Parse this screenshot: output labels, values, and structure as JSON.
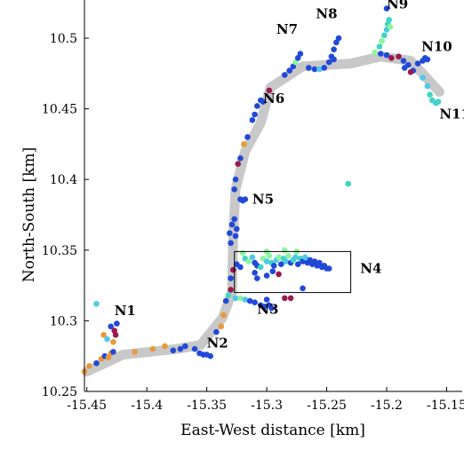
{
  "chart_data": {
    "type": "scatter",
    "xlabel": "East-West distance [km]",
    "ylabel": "North-South [km]",
    "xlim": [
      -15.452,
      -15.137
    ],
    "ylim": [
      10.25,
      10.527
    ],
    "x_ticks": [
      {
        "v": -15.45,
        "label": "-15.45"
      },
      {
        "v": -15.4,
        "label": "-15.4"
      },
      {
        "v": -15.35,
        "label": "-15.35"
      },
      {
        "v": -15.3,
        "label": "-15.3"
      },
      {
        "v": -15.25,
        "label": "-15.25"
      },
      {
        "v": -15.2,
        "label": "-15.2"
      },
      {
        "v": -15.15,
        "label": "-15.15"
      }
    ],
    "y_ticks": [
      {
        "v": 10.25,
        "label": "10.25"
      },
      {
        "v": 10.3,
        "label": "10.3"
      },
      {
        "v": 10.35,
        "label": "10.35"
      },
      {
        "v": 10.4,
        "label": "10.4"
      },
      {
        "v": 10.45,
        "label": "10.45"
      },
      {
        "v": 10.5,
        "label": "10.5"
      }
    ],
    "path": [
      [
        -15.45,
        10.264
      ],
      [
        -15.42,
        10.276
      ],
      [
        -15.375,
        10.28
      ],
      [
        -15.355,
        10.283
      ],
      [
        -15.337,
        10.302
      ],
      [
        -15.329,
        10.32
      ],
      [
        -15.328,
        10.36
      ],
      [
        -15.326,
        10.393
      ],
      [
        -15.318,
        10.42
      ],
      [
        -15.305,
        10.44
      ],
      [
        -15.297,
        10.465
      ],
      [
        -15.27,
        10.48
      ],
      [
        -15.23,
        10.482
      ],
      [
        -15.205,
        10.487
      ],
      [
        -15.18,
        10.484
      ],
      [
        -15.156,
        10.462
      ]
    ],
    "box": {
      "x0": -15.327,
      "x1": -15.23,
      "y0": 10.32,
      "y1": 10.349
    },
    "node_labels": [
      {
        "text": "N1",
        "x": -15.427,
        "y": 10.304
      },
      {
        "text": "N2",
        "x": -15.35,
        "y": 10.281
      },
      {
        "text": "N3",
        "x": -15.308,
        "y": 10.305
      },
      {
        "text": "N4",
        "x": -15.222,
        "y": 10.334
      },
      {
        "text": "N5",
        "x": -15.312,
        "y": 10.383
      },
      {
        "text": "N6",
        "x": -15.303,
        "y": 10.454
      },
      {
        "text": "N7",
        "x": -15.292,
        "y": 10.503
      },
      {
        "text": "N8",
        "x": -15.259,
        "y": 10.514
      },
      {
        "text": "N9",
        "x": -15.2,
        "y": 10.521
      },
      {
        "text": "N10",
        "x": -15.171,
        "y": 10.491
      },
      {
        "text": "N11",
        "x": -15.156,
        "y": 10.443
      }
    ],
    "points": [
      [
        -15.452,
        10.264,
        "orange"
      ],
      [
        -15.448,
        10.268,
        "orange"
      ],
      [
        -15.442,
        10.27,
        "blue"
      ],
      [
        -15.438,
        10.273,
        "orange"
      ],
      [
        -15.435,
        10.275,
        "blue"
      ],
      [
        -15.432,
        10.274,
        "orange"
      ],
      [
        -15.43,
        10.277,
        "orange"
      ],
      [
        -15.428,
        10.278,
        "blue"
      ],
      [
        -15.436,
        10.29,
        "orange"
      ],
      [
        -15.433,
        10.287,
        "cyan"
      ],
      [
        -15.43,
        10.296,
        "blue"
      ],
      [
        -15.427,
        10.293,
        "maroon"
      ],
      [
        -15.426,
        10.29,
        "maroon"
      ],
      [
        -15.425,
        10.298,
        "blue"
      ],
      [
        -15.428,
        10.285,
        "orange"
      ],
      [
        -15.442,
        10.312,
        "cyan"
      ],
      [
        -15.41,
        10.278,
        "orange"
      ],
      [
        -15.395,
        10.28,
        "orange"
      ],
      [
        -15.385,
        10.282,
        "orange"
      ],
      [
        -15.378,
        10.279,
        "blue"
      ],
      [
        -15.372,
        10.28,
        "blue"
      ],
      [
        -15.368,
        10.282,
        "blue"
      ],
      [
        -15.36,
        10.28,
        "blue"
      ],
      [
        -15.356,
        10.277,
        "blue"
      ],
      [
        -15.353,
        10.276,
        "blue"
      ],
      [
        -15.35,
        10.276,
        "blue"
      ],
      [
        -15.347,
        10.275,
        "blue"
      ],
      [
        -15.342,
        10.292,
        "blue"
      ],
      [
        -15.338,
        10.296,
        "orange"
      ],
      [
        -15.336,
        10.304,
        "orange"
      ],
      [
        -15.334,
        10.314,
        "blue"
      ],
      [
        -15.332,
        10.318,
        "teal"
      ],
      [
        -15.33,
        10.322,
        "maroon"
      ],
      [
        -15.326,
        10.316,
        "cyan"
      ],
      [
        -15.322,
        10.316,
        "mint"
      ],
      [
        -15.318,
        10.315,
        "cyan"
      ],
      [
        -15.314,
        10.314,
        "blue"
      ],
      [
        -15.31,
        10.313,
        "blue"
      ],
      [
        -15.305,
        10.311,
        "blue"
      ],
      [
        -15.302,
        10.31,
        "blue"
      ],
      [
        -15.298,
        10.311,
        "blue"
      ],
      [
        -15.296,
        10.309,
        "blue"
      ],
      [
        -15.3,
        10.315,
        "blue"
      ],
      [
        -15.285,
        10.316,
        "maroon"
      ],
      [
        -15.28,
        10.316,
        "maroon"
      ],
      [
        -15.33,
        10.33,
        "blue"
      ],
      [
        -15.328,
        10.336,
        "maroon"
      ],
      [
        -15.325,
        10.34,
        "blue"
      ],
      [
        -15.322,
        10.338,
        "blue"
      ],
      [
        -15.318,
        10.344,
        "teal"
      ],
      [
        -15.315,
        10.342,
        "mint"
      ],
      [
        -15.312,
        10.345,
        "cyan"
      ],
      [
        -15.31,
        10.341,
        "blue"
      ],
      [
        -15.308,
        10.339,
        "blue"
      ],
      [
        -15.305,
        10.338,
        "teal"
      ],
      [
        -15.303,
        10.344,
        "mint"
      ],
      [
        -15.3,
        10.342,
        "cyan"
      ],
      [
        -15.298,
        10.346,
        "mint"
      ],
      [
        -15.296,
        10.341,
        "teal"
      ],
      [
        -15.294,
        10.339,
        "blue"
      ],
      [
        -15.292,
        10.343,
        "cyan"
      ],
      [
        -15.29,
        10.345,
        "mint"
      ],
      [
        -15.288,
        10.34,
        "blue"
      ],
      [
        -15.286,
        10.344,
        "teal"
      ],
      [
        -15.284,
        10.342,
        "cyan"
      ],
      [
        -15.282,
        10.346,
        "mint"
      ],
      [
        -15.28,
        10.341,
        "blue"
      ],
      [
        -15.278,
        10.343,
        "teal"
      ],
      [
        -15.276,
        10.345,
        "cyan"
      ],
      [
        -15.274,
        10.34,
        "blue"
      ],
      [
        -15.272,
        10.344,
        "teal"
      ],
      [
        -15.27,
        10.342,
        "blue"
      ],
      [
        -15.268,
        10.345,
        "cyan"
      ],
      [
        -15.266,
        10.341,
        "blue"
      ],
      [
        -15.264,
        10.343,
        "blue"
      ],
      [
        -15.262,
        10.34,
        "blue"
      ],
      [
        -15.26,
        10.342,
        "blue"
      ],
      [
        -15.258,
        10.339,
        "blue"
      ],
      [
        -15.256,
        10.341,
        "blue"
      ],
      [
        -15.254,
        10.338,
        "blue"
      ],
      [
        -15.252,
        10.339,
        "blue"
      ],
      [
        -15.25,
        10.337,
        "blue"
      ],
      [
        -15.248,
        10.337,
        "blue"
      ],
      [
        -15.295,
        10.335,
        "blue"
      ],
      [
        -15.29,
        10.333,
        "maroon"
      ],
      [
        -15.3,
        10.332,
        "blue"
      ],
      [
        -15.31,
        10.334,
        "blue"
      ],
      [
        -15.32,
        10.348,
        "mint"
      ],
      [
        -15.3,
        10.349,
        "mint"
      ],
      [
        -15.285,
        10.35,
        "mint"
      ],
      [
        -15.275,
        10.349,
        "mint"
      ],
      [
        -15.27,
        10.323,
        "blue"
      ],
      [
        -15.308,
        10.33,
        "blue"
      ],
      [
        -15.331,
        10.362,
        "blue"
      ],
      [
        -15.33,
        10.355,
        "blue"
      ],
      [
        -15.329,
        10.368,
        "blue"
      ],
      [
        -15.327,
        10.372,
        "blue"
      ],
      [
        -15.326,
        10.36,
        "blue"
      ],
      [
        -15.325,
        10.365,
        "blue"
      ],
      [
        -15.322,
        10.386,
        "blue"
      ],
      [
        -15.32,
        10.385,
        "blue"
      ],
      [
        -15.318,
        10.386,
        "blue"
      ],
      [
        -15.327,
        10.393,
        "blue"
      ],
      [
        -15.326,
        10.4,
        "blue"
      ],
      [
        -15.324,
        10.411,
        "maroon"
      ],
      [
        -15.322,
        10.415,
        "blue"
      ],
      [
        -15.319,
        10.425,
        "orange"
      ],
      [
        -15.316,
        10.43,
        "blue"
      ],
      [
        -15.312,
        10.442,
        "blue"
      ],
      [
        -15.31,
        10.446,
        "blue"
      ],
      [
        -15.308,
        10.452,
        "blue"
      ],
      [
        -15.305,
        10.456,
        "blue"
      ],
      [
        -15.303,
        10.455,
        "blue"
      ],
      [
        -15.298,
        10.463,
        "maroon"
      ],
      [
        -15.232,
        10.397,
        "teal"
      ],
      [
        -15.285,
        10.474,
        "blue"
      ],
      [
        -15.281,
        10.477,
        "blue"
      ],
      [
        -15.278,
        10.48,
        "blue"
      ],
      [
        -15.276,
        10.483,
        "mint"
      ],
      [
        -15.274,
        10.486,
        "blue"
      ],
      [
        -15.272,
        10.489,
        "blue"
      ],
      [
        -15.265,
        10.479,
        "blue"
      ],
      [
        -15.26,
        10.478,
        "blue"
      ],
      [
        -15.256,
        10.478,
        "cyan"
      ],
      [
        -15.252,
        10.479,
        "blue"
      ],
      [
        -15.248,
        10.483,
        "blue"
      ],
      [
        -15.246,
        10.487,
        "blue"
      ],
      [
        -15.244,
        10.492,
        "blue"
      ],
      [
        -15.242,
        10.497,
        "blue"
      ],
      [
        -15.24,
        10.5,
        "blue"
      ],
      [
        -15.244,
        10.485,
        "blue"
      ],
      [
        -15.21,
        10.49,
        "mint"
      ],
      [
        -15.206,
        10.494,
        "teal"
      ],
      [
        -15.204,
        10.498,
        "mint"
      ],
      [
        -15.202,
        10.502,
        "teal"
      ],
      [
        -15.2,
        10.506,
        "cyan"
      ],
      [
        -15.199,
        10.51,
        "teal"
      ],
      [
        -15.198,
        10.513,
        "teal"
      ],
      [
        -15.197,
        10.508,
        "mint"
      ],
      [
        -15.2,
        10.521,
        "blue"
      ],
      [
        -15.205,
        10.489,
        "blue"
      ],
      [
        -15.2,
        10.488,
        "blue"
      ],
      [
        -15.196,
        10.486,
        "maroon"
      ],
      [
        -15.19,
        10.487,
        "maroon"
      ],
      [
        -15.186,
        10.484,
        "blue"
      ],
      [
        -15.182,
        10.481,
        "blue"
      ],
      [
        -15.178,
        10.477,
        "blue"
      ],
      [
        -15.174,
        10.482,
        "blue"
      ],
      [
        -15.17,
        10.484,
        "blue"
      ],
      [
        -15.168,
        10.486,
        "blue"
      ],
      [
        -15.166,
        10.485,
        "blue"
      ],
      [
        -15.17,
        10.472,
        "cyan"
      ],
      [
        -15.166,
        10.466,
        "cyan"
      ],
      [
        -15.164,
        10.46,
        "teal"
      ],
      [
        -15.162,
        10.456,
        "teal"
      ],
      [
        -15.159,
        10.454,
        "cyan"
      ],
      [
        -15.157,
        10.455,
        "teal"
      ],
      [
        -15.18,
        10.476,
        "maroon"
      ],
      [
        -15.185,
        10.479,
        "blue"
      ]
    ]
  },
  "colors": {
    "blue": "#2149d8",
    "orange": "#e8993a",
    "maroon": "#9b1a4e",
    "cyan": "#4fc8ea",
    "teal": "#3fd6c2",
    "mint": "#8ef59c",
    "path": "#c8c8c8"
  }
}
